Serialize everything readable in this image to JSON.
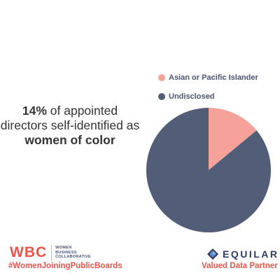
{
  "headline": {
    "percent": "14%",
    "line1_rest": " of appointed",
    "line2": "directors self-identified as",
    "emphasis": "women of color"
  },
  "chart_data": {
    "type": "pie",
    "title": "",
    "slices": [
      {
        "label": "Asian or Pacific Islander",
        "value": 14,
        "color": "#f6a29a"
      },
      {
        "label": "Undisclosed",
        "value": 86,
        "color": "#525d78"
      }
    ],
    "start_angle_deg": 0,
    "direction": "clockwise",
    "legend_placement": "top"
  },
  "branding": {
    "wbc_mark": "WBC",
    "wbc_words": [
      "WOMEN",
      "BUSINESS",
      "COLLABORATIVE"
    ],
    "hashtag": "#WomenJoiningPublicBoards",
    "equilar_word": "EQUILAR",
    "partner_label": "Valued Data Partner",
    "coral": "#e8554c",
    "navy": "#2e3b5e"
  }
}
